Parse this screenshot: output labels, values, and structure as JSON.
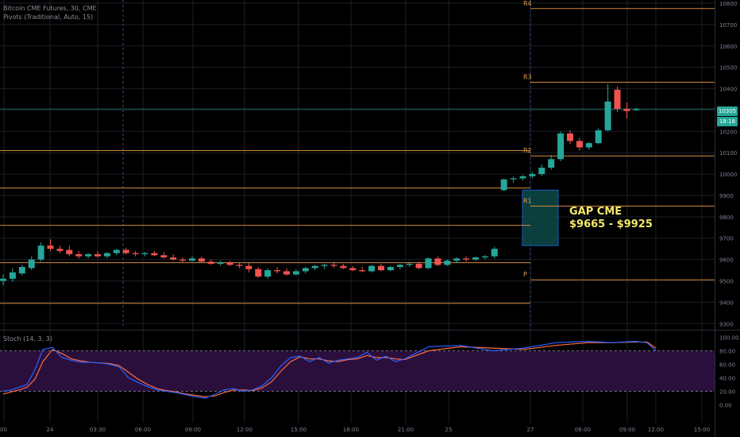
{
  "legend": {
    "title": "Bitcoin CME Futures, 30, CME",
    "pivots": "Pivots (Traditional, Auto, 15)",
    "stoch": "Stoch (14, 3, 3)"
  },
  "colors": {
    "background": "#000000",
    "grid": "#1c1f28",
    "up": "#26a69a",
    "down": "#ef5350",
    "pivot_line": "#d28a3c",
    "pivot_label": "#e0a050",
    "last_price_line": "#26a69a",
    "stoch_k": "#2962ff",
    "stoch_d": "#ff6d3f",
    "stoch_band": "#2a0f3d",
    "gap_fill": "#0c4a48",
    "gap_border": "#1e59c4",
    "gap_text": "#f5e86b",
    "axis_text": "#7c8190"
  },
  "price_axis": {
    "labels": [
      "10800",
      "10700",
      "10600",
      "10500",
      "10400",
      "10300",
      "10200",
      "10100",
      "10000",
      "9900",
      "9800",
      "9700",
      "9600",
      "9500",
      "9400",
      "9300"
    ],
    "last_price": "10305",
    "timer": "18:18"
  },
  "time_axis": {
    "labels": [
      "00",
      "24",
      "03:30",
      "06:00",
      "09:00",
      "12:00",
      "15:00",
      "18:00",
      "21:00",
      "25",
      "27",
      "06:00",
      "09:00",
      "12:00",
      "15:00"
    ]
  },
  "stoch_axis": {
    "labels": [
      "100.00",
      "80.00",
      "60.00",
      "40.00",
      "20.00",
      "0.00"
    ]
  },
  "pivots": {
    "labels": [
      "R4",
      "R3",
      "R2",
      "R1",
      "P"
    ]
  },
  "annotation": {
    "title": "GAP CME",
    "range": "$9665 - $9925"
  },
  "chart_data": {
    "type": "candlestick",
    "price_range": [
      9300,
      10800
    ],
    "stoch_range": [
      0,
      100
    ],
    "candles": [
      {
        "o": 9500,
        "h": 9530,
        "l": 9480,
        "c": 9510
      },
      {
        "o": 9510,
        "h": 9560,
        "l": 9495,
        "c": 9540
      },
      {
        "o": 9535,
        "h": 9575,
        "l": 9525,
        "c": 9565
      },
      {
        "o": 9560,
        "h": 9615,
        "l": 9550,
        "c": 9600
      },
      {
        "o": 9600,
        "h": 9680,
        "l": 9590,
        "c": 9665
      },
      {
        "o": 9665,
        "h": 9695,
        "l": 9640,
        "c": 9650
      },
      {
        "o": 9650,
        "h": 9665,
        "l": 9630,
        "c": 9640
      },
      {
        "o": 9645,
        "h": 9665,
        "l": 9615,
        "c": 9625
      },
      {
        "o": 9625,
        "h": 9640,
        "l": 9605,
        "c": 9615
      },
      {
        "o": 9615,
        "h": 9630,
        "l": 9605,
        "c": 9625
      },
      {
        "o": 9625,
        "h": 9640,
        "l": 9610,
        "c": 9615
      },
      {
        "o": 9615,
        "h": 9635,
        "l": 9605,
        "c": 9630
      },
      {
        "o": 9630,
        "h": 9650,
        "l": 9620,
        "c": 9645
      },
      {
        "o": 9645,
        "h": 9655,
        "l": 9625,
        "c": 9630
      },
      {
        "o": 9630,
        "h": 9640,
        "l": 9615,
        "c": 9625
      },
      {
        "o": 9625,
        "h": 9635,
        "l": 9615,
        "c": 9630
      },
      {
        "o": 9630,
        "h": 9640,
        "l": 9615,
        "c": 9620
      },
      {
        "o": 9620,
        "h": 9635,
        "l": 9605,
        "c": 9610
      },
      {
        "o": 9610,
        "h": 9625,
        "l": 9595,
        "c": 9600
      },
      {
        "o": 9600,
        "h": 9610,
        "l": 9585,
        "c": 9595
      },
      {
        "o": 9595,
        "h": 9615,
        "l": 9590,
        "c": 9605
      },
      {
        "o": 9605,
        "h": 9615,
        "l": 9585,
        "c": 9590
      },
      {
        "o": 9590,
        "h": 9600,
        "l": 9575,
        "c": 9580
      },
      {
        "o": 9580,
        "h": 9595,
        "l": 9570,
        "c": 9585
      },
      {
        "o": 9585,
        "h": 9595,
        "l": 9570,
        "c": 9575
      },
      {
        "o": 9575,
        "h": 9585,
        "l": 9560,
        "c": 9570
      },
      {
        "o": 9570,
        "h": 9585,
        "l": 9540,
        "c": 9555
      },
      {
        "o": 9555,
        "h": 9565,
        "l": 9515,
        "c": 9520
      },
      {
        "o": 9520,
        "h": 9560,
        "l": 9510,
        "c": 9550
      },
      {
        "o": 9550,
        "h": 9565,
        "l": 9535,
        "c": 9545
      },
      {
        "o": 9545,
        "h": 9560,
        "l": 9525,
        "c": 9530
      },
      {
        "o": 9530,
        "h": 9555,
        "l": 9525,
        "c": 9545
      },
      {
        "o": 9545,
        "h": 9565,
        "l": 9535,
        "c": 9560
      },
      {
        "o": 9560,
        "h": 9575,
        "l": 9550,
        "c": 9570
      },
      {
        "o": 9570,
        "h": 9580,
        "l": 9555,
        "c": 9575
      },
      {
        "o": 9575,
        "h": 9590,
        "l": 9560,
        "c": 9570
      },
      {
        "o": 9570,
        "h": 9580,
        "l": 9555,
        "c": 9560
      },
      {
        "o": 9560,
        "h": 9570,
        "l": 9545,
        "c": 9550
      },
      {
        "o": 9550,
        "h": 9565,
        "l": 9540,
        "c": 9545
      },
      {
        "o": 9545,
        "h": 9575,
        "l": 9540,
        "c": 9570
      },
      {
        "o": 9570,
        "h": 9580,
        "l": 9545,
        "c": 9550
      },
      {
        "o": 9550,
        "h": 9570,
        "l": 9545,
        "c": 9565
      },
      {
        "o": 9565,
        "h": 9580,
        "l": 9555,
        "c": 9575
      },
      {
        "o": 9575,
        "h": 9590,
        "l": 9565,
        "c": 9580
      },
      {
        "o": 9580,
        "h": 9590,
        "l": 9555,
        "c": 9560
      },
      {
        "o": 9560,
        "h": 9610,
        "l": 9555,
        "c": 9605
      },
      {
        "o": 9605,
        "h": 9615,
        "l": 9570,
        "c": 9575
      },
      {
        "o": 9575,
        "h": 9600,
        "l": 9570,
        "c": 9595
      },
      {
        "o": 9595,
        "h": 9610,
        "l": 9585,
        "c": 9605
      },
      {
        "o": 9605,
        "h": 9615,
        "l": 9590,
        "c": 9600
      },
      {
        "o": 9600,
        "h": 9615,
        "l": 9595,
        "c": 9610
      },
      {
        "o": 9610,
        "h": 9620,
        "l": 9600,
        "c": 9615
      },
      {
        "o": 9615,
        "h": 9660,
        "l": 9605,
        "c": 9650
      },
      {
        "o": 9925,
        "h": 9980,
        "l": 9920,
        "c": 9975
      },
      {
        "o": 9975,
        "h": 9990,
        "l": 9960,
        "c": 9980
      },
      {
        "o": 9980,
        "h": 9995,
        "l": 9970,
        "c": 9990
      },
      {
        "o": 9990,
        "h": 10010,
        "l": 9980,
        "c": 10000
      },
      {
        "o": 10000,
        "h": 10045,
        "l": 9990,
        "c": 10030
      },
      {
        "o": 10030,
        "h": 10090,
        "l": 10020,
        "c": 10070
      },
      {
        "o": 10070,
        "h": 10200,
        "l": 10060,
        "c": 10190
      },
      {
        "o": 10190,
        "h": 10205,
        "l": 10140,
        "c": 10155
      },
      {
        "o": 10155,
        "h": 10170,
        "l": 10110,
        "c": 10125
      },
      {
        "o": 10125,
        "h": 10150,
        "l": 10115,
        "c": 10145
      },
      {
        "o": 10145,
        "h": 10215,
        "l": 10140,
        "c": 10205
      },
      {
        "o": 10205,
        "h": 10420,
        "l": 10200,
        "c": 10340
      },
      {
        "o": 10395,
        "h": 10410,
        "l": 10290,
        "c": 10305
      },
      {
        "o": 10305,
        "h": 10335,
        "l": 10260,
        "c": 10295
      },
      {
        "o": 10300,
        "h": 10310,
        "l": 10295,
        "c": 10305
      }
    ],
    "pivot_levels": [
      {
        "label": "R4",
        "value": 10775,
        "start": "27"
      },
      {
        "label": "R3",
        "value": 10430,
        "start": "27"
      },
      {
        "label": "R2",
        "value": 10085,
        "start": "27"
      },
      {
        "label": "R1",
        "value": 9850,
        "start": "27"
      },
      {
        "label": "P",
        "value": 9505,
        "start": "27"
      },
      {
        "value": 10110,
        "start": "00",
        "end": "27"
      },
      {
        "value": 9935,
        "start": "00",
        "end": "27"
      },
      {
        "value": 9760,
        "start": "00",
        "end": "27"
      },
      {
        "value": 9585,
        "start": "00",
        "end": "27"
      },
      {
        "value": 9395,
        "start": "00",
        "end": "27"
      }
    ],
    "gap": {
      "low": 9665,
      "high": 9925
    },
    "stoch_k": [
      20,
      22,
      26,
      30,
      52,
      82,
      85,
      70,
      66,
      63,
      63,
      62,
      60,
      56,
      40,
      33,
      27,
      22,
      20,
      18,
      15,
      12,
      10,
      15,
      22,
      24,
      20,
      22,
      28,
      40,
      58,
      70,
      72,
      64,
      70,
      62,
      66,
      68,
      70,
      78,
      66,
      72,
      64,
      68,
      86,
      88,
      80,
      84,
      92,
      94,
      92,
      94,
      92,
      80
    ],
    "stoch_d": [
      16,
      19,
      22,
      26,
      38,
      64,
      82,
      76,
      68,
      65,
      63,
      62,
      61,
      58,
      48,
      38,
      30,
      24,
      21,
      19,
      16,
      14,
      12,
      13,
      18,
      22,
      22,
      21,
      25,
      34,
      50,
      64,
      71,
      68,
      68,
      65,
      64,
      67,
      68,
      73,
      70,
      70,
      68,
      67,
      80,
      86,
      84,
      82,
      88,
      92,
      92,
      93,
      93,
      84
    ],
    "time_labels": [
      "00",
      "24",
      "03:30",
      "06:00",
      "09:00",
      "12:00",
      "15:00",
      "18:00",
      "21:00",
      "25",
      "27",
      "06:00",
      "09:00",
      "12:00",
      "15:00"
    ]
  }
}
